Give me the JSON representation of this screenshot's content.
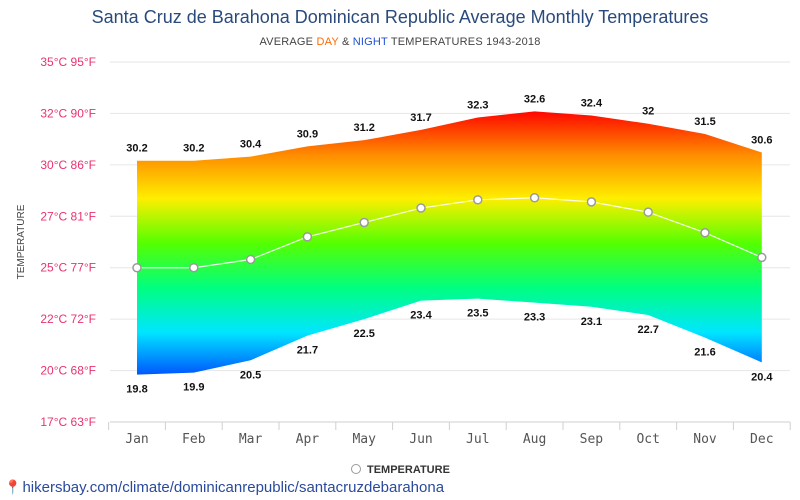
{
  "title": "Santa Cruz de Barahona Dominican Republic Average Monthly Temperatures",
  "subtitle": {
    "prefix": "AVERAGE ",
    "day": "DAY",
    "amp": " & ",
    "night": "NIGHT",
    "suffix": " TEMPERATURES 1943-2018"
  },
  "source": "hikersbay.com/climate/dominicanrepublic/santacruzdebarahona",
  "colors": {
    "title": "#2a4a7c",
    "axis_label": "#e8336f",
    "day": "#ff6a00",
    "night": "#1f4fd1",
    "gradient": [
      "#ff0000",
      "#ff8a00",
      "#ffee00",
      "#55ff00",
      "#00ff80",
      "#00e6ff",
      "#0050ff"
    ]
  },
  "chart_data": {
    "type": "area",
    "categories": [
      "Jan",
      "Feb",
      "Mar",
      "Apr",
      "May",
      "Jun",
      "Jul",
      "Aug",
      "Sep",
      "Oct",
      "Nov",
      "Dec"
    ],
    "series": [
      {
        "role": "day",
        "values": [
          30.2,
          30.2,
          30.4,
          30.9,
          31.2,
          31.7,
          32.3,
          32.6,
          32.4,
          32,
          31.5,
          30.6
        ]
      },
      {
        "name": "TEMPERATURE",
        "role": "average",
        "values": [
          25.0,
          25.0,
          25.4,
          26.5,
          27.2,
          27.9,
          28.3,
          28.4,
          28.2,
          27.7,
          26.7,
          25.5
        ]
      },
      {
        "role": "night",
        "values": [
          19.8,
          19.9,
          20.5,
          21.7,
          22.5,
          23.4,
          23.5,
          23.3,
          23.1,
          22.7,
          21.6,
          20.4
        ]
      }
    ],
    "ylabel": "TEMPERATURE",
    "ylim": [
      17.5,
      35
    ],
    "yticks": [
      {
        "value": 35,
        "label": "35°C 95°F"
      },
      {
        "value": 32.5,
        "label": "32°C 90°F"
      },
      {
        "value": 30,
        "label": "30°C 86°F"
      },
      {
        "value": 27.5,
        "label": "27°C 81°F"
      },
      {
        "value": 25,
        "label": "25°C 77°F"
      },
      {
        "value": 22.5,
        "label": "22°C 72°F"
      },
      {
        "value": 20,
        "label": "20°C 68°F"
      },
      {
        "value": 17.5,
        "label": "17°C 63°F"
      }
    ],
    "grid": true,
    "legend": "bottom"
  }
}
